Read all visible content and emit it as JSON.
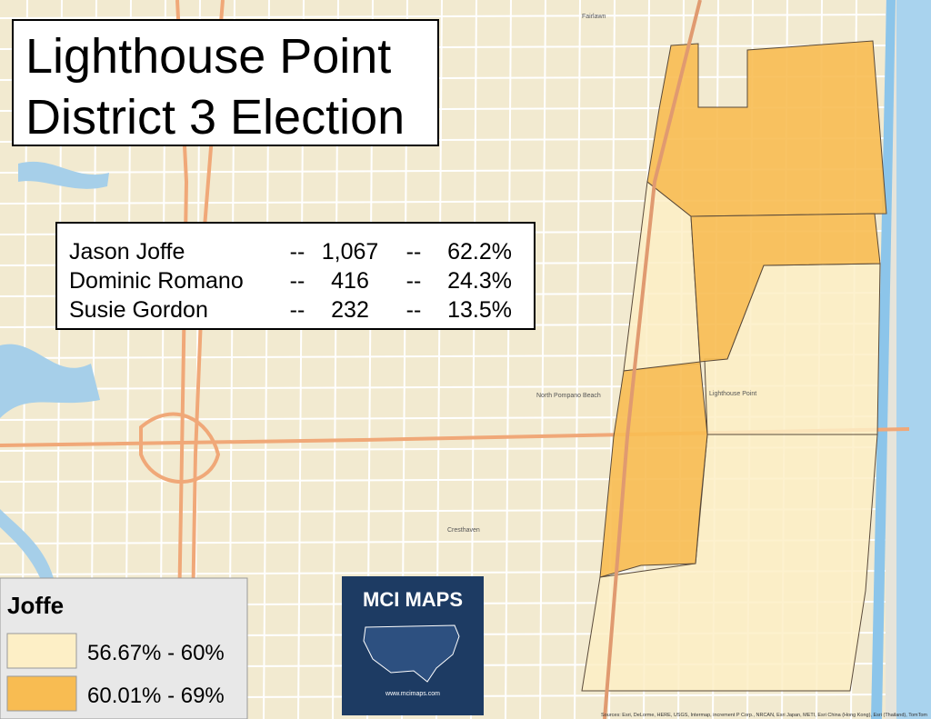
{
  "header": {
    "title_lines": [
      "Lighthouse Point",
      "District 3 Election"
    ]
  },
  "results": {
    "rows": [
      [
        "Jason Joffe",
        "--",
        "1,067",
        "--",
        "62.2%"
      ],
      [
        "Dominic Romano",
        "--",
        "416",
        "--",
        "24.3%"
      ],
      [
        "Susie Gordon",
        "--",
        "232",
        "--",
        "13.5%"
      ]
    ]
  },
  "legend": {
    "title": "Joffe",
    "items": [
      {
        "label": "56.67% - 60%",
        "color": "#fdefc6"
      },
      {
        "label": "60.01% - 69%",
        "color": "#f8bc52"
      }
    ]
  },
  "logo": {
    "name": "MCI MAPS",
    "url": "www.mcimaps.com"
  },
  "map_labels": [
    "Lighthouse Point",
    "North Pompano Beach",
    "Cresthaven",
    "Fairlawn"
  ],
  "attribution": "Sources: Esri, DeLorme, HERE, USGS, Intermap, increment P Corp., NRCAN, Esri Japan, METI, Esri China (Hong Kong), Esri (Thailand), TomTom"
}
